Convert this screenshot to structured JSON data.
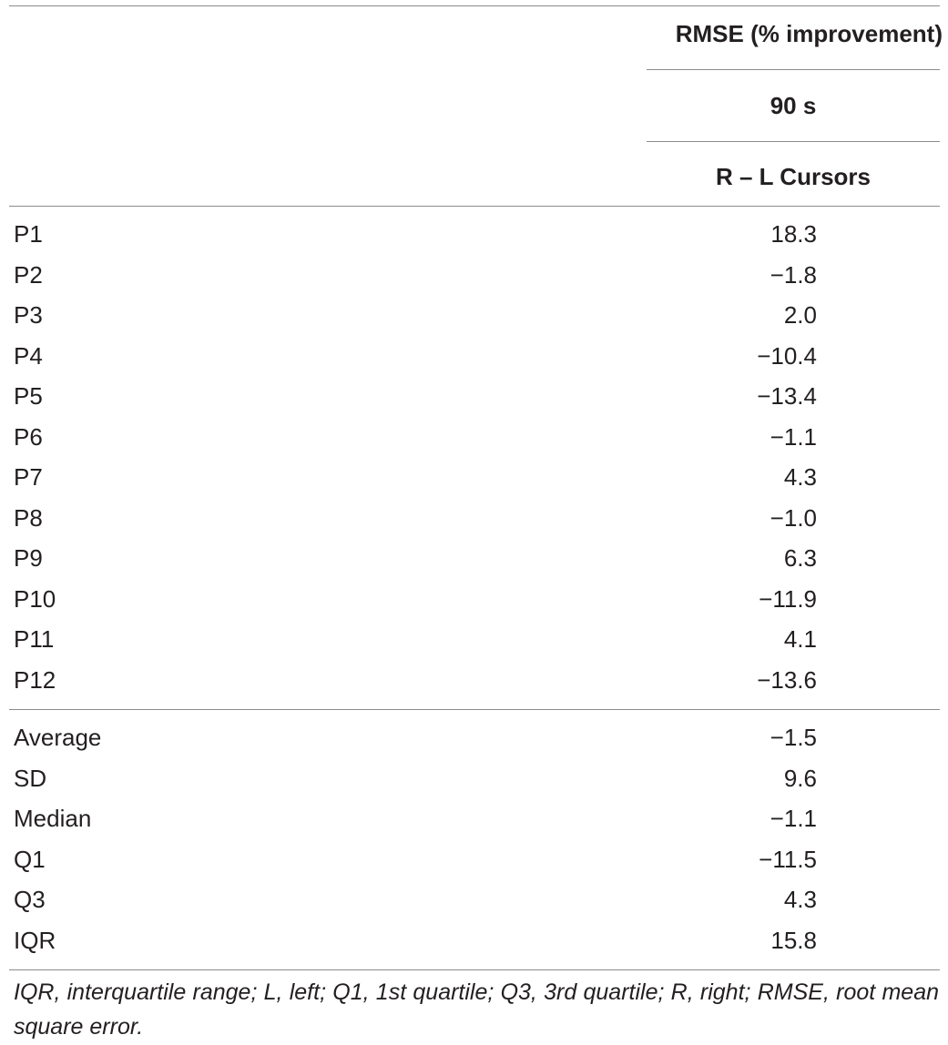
{
  "header": {
    "group": "RMSE (% improvement)",
    "duration": "90 s",
    "column": "R – L Cursors"
  },
  "participants": [
    {
      "label": "P1",
      "value": "18.3"
    },
    {
      "label": "P2",
      "value": "−1.8"
    },
    {
      "label": "P3",
      "value": "2.0"
    },
    {
      "label": "P4",
      "value": "−10.4"
    },
    {
      "label": "P5",
      "value": "−13.4"
    },
    {
      "label": "P6",
      "value": "−1.1"
    },
    {
      "label": "P7",
      "value": "4.3"
    },
    {
      "label": "P8",
      "value": "−1.0"
    },
    {
      "label": "P9",
      "value": "6.3"
    },
    {
      "label": "P10",
      "value": "−11.9"
    },
    {
      "label": "P11",
      "value": "4.1"
    },
    {
      "label": "P12",
      "value": "−13.6"
    }
  ],
  "summary": [
    {
      "label": "Average",
      "value": "−1.5"
    },
    {
      "label": "SD",
      "value": "9.6"
    },
    {
      "label": "Median",
      "value": "−1.1"
    },
    {
      "label": "Q1",
      "value": "−11.5"
    },
    {
      "label": "Q3",
      "value": "4.3"
    },
    {
      "label": "IQR",
      "value": "15.8"
    }
  ],
  "footnote": "IQR, interquartile range; L, left; Q1, 1st quartile; Q3, 3rd quartile; R, right; RMSE, root mean square error."
}
